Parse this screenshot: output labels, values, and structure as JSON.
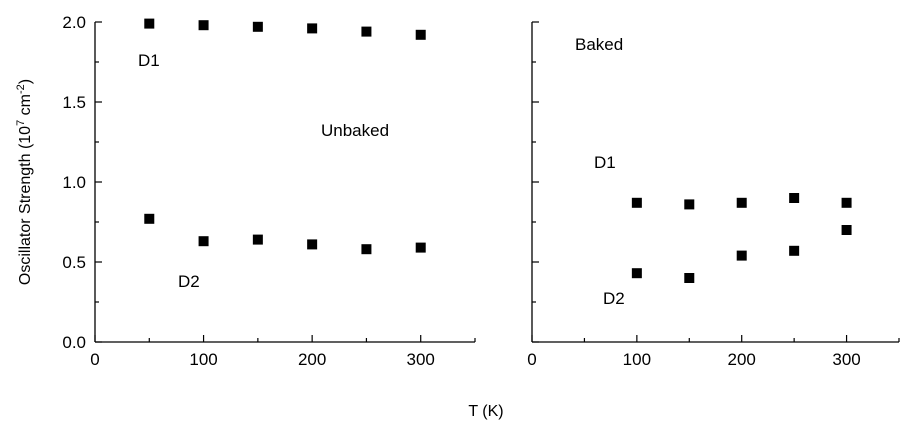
{
  "chart_data": [
    {
      "type": "scatter",
      "panel": "left",
      "xlim": [
        0,
        350
      ],
      "ylim": [
        0,
        2.0
      ],
      "xticks": [
        "0",
        "100",
        "200",
        "300"
      ],
      "yticks": [
        "0.0",
        "0.5",
        "1.0",
        "1.5",
        "2.0"
      ],
      "series": [
        {
          "name": "D1",
          "x": [
            50,
            100,
            150,
            200,
            250,
            300
          ],
          "y": [
            1.99,
            1.98,
            1.97,
            1.96,
            1.94,
            1.92
          ]
        },
        {
          "name": "D2",
          "x": [
            50,
            100,
            150,
            200,
            250,
            300
          ],
          "y": [
            0.77,
            0.63,
            0.64,
            0.61,
            0.58,
            0.59
          ]
        }
      ],
      "annotation": "Unbaked"
    },
    {
      "type": "scatter",
      "panel": "right",
      "xlim": [
        0,
        350
      ],
      "ylim": [
        0,
        2.0
      ],
      "xticks": [
        "0",
        "100",
        "200",
        "300"
      ],
      "series": [
        {
          "name": "D1",
          "x": [
            100,
            150,
            200,
            250,
            300
          ],
          "y": [
            0.87,
            0.86,
            0.87,
            0.9,
            0.87
          ]
        },
        {
          "name": "D2",
          "x": [
            100,
            150,
            200,
            250,
            300
          ],
          "y": [
            0.43,
            0.4,
            0.54,
            0.57,
            0.7
          ]
        }
      ],
      "annotation": "Baked"
    }
  ],
  "axes": {
    "ylabel_main": "Oscillator Strength (10",
    "ylabel_sup1": "7",
    "ylabel_mid": " cm",
    "ylabel_sup2": "-2",
    "ylabel_end": ")",
    "xlabel": "T (K)"
  },
  "legend": "none",
  "grid": false
}
